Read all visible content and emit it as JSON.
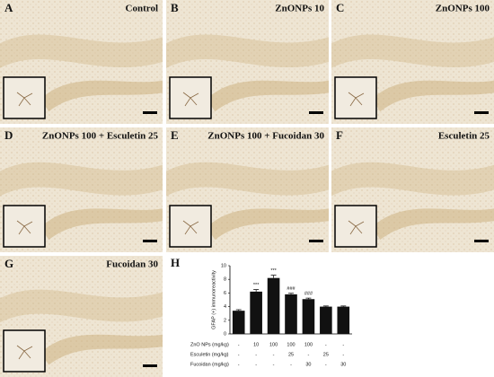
{
  "panels": [
    {
      "label": "A",
      "title": "Control"
    },
    {
      "label": "B",
      "title": "ZnONPs 10"
    },
    {
      "label": "C",
      "title": "ZnONPs 100"
    },
    {
      "label": "D",
      "title": "ZnONPs 100 + Esculetin 25"
    },
    {
      "label": "E",
      "title": "ZnONPs 100 + Fucoidan 30"
    },
    {
      "label": "F",
      "title": "Esculetin 25"
    },
    {
      "label": "G",
      "title": "Fucoidan 30"
    }
  ],
  "chart_data": {
    "type": "bar",
    "panel_label": "H",
    "y_label": "GFAP (+) immunoreactivity",
    "categories": [
      null,
      null,
      null,
      null,
      null,
      null,
      null
    ],
    "values": [
      3.4,
      6.2,
      8.2,
      5.8,
      5.1,
      4.0,
      4.0
    ],
    "errors": [
      0.15,
      0.3,
      0.4,
      0.15,
      0.15,
      0.1,
      0.1
    ],
    "annotations": [
      null,
      "***",
      "***",
      "###",
      "###",
      null,
      null
    ],
    "color": "#111111",
    "ylim": [
      0,
      10
    ],
    "yticks": [
      0,
      2,
      4,
      6,
      8,
      10
    ],
    "treatments": [
      {
        "name": "ZnO NPs (mg/kg)",
        "doses": [
          "-",
          "10",
          "100",
          "100",
          "100",
          "-",
          "-"
        ]
      },
      {
        "name": "Esculetin (mg/kg)",
        "doses": [
          "-",
          "-",
          "-",
          "25",
          "-",
          "25",
          "-"
        ]
      },
      {
        "name": "Fucoidan (mg/kg)",
        "doses": [
          "-",
          "-",
          "-",
          "-",
          "30",
          "-",
          "30"
        ]
      }
    ]
  }
}
